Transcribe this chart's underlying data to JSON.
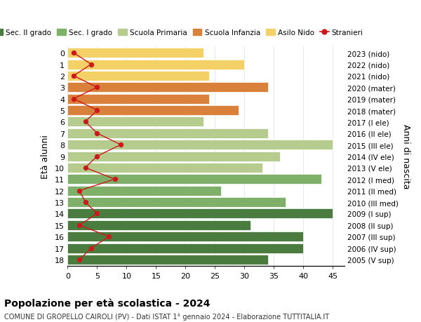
{
  "ages": [
    18,
    17,
    16,
    15,
    14,
    13,
    12,
    11,
    10,
    9,
    8,
    7,
    6,
    5,
    4,
    3,
    2,
    1,
    0
  ],
  "years": [
    "2005 (V sup)",
    "2006 (IV sup)",
    "2007 (III sup)",
    "2008 (II sup)",
    "2009 (I sup)",
    "2010 (III med)",
    "2011 (II med)",
    "2012 (I med)",
    "2013 (V ele)",
    "2014 (IV ele)",
    "2015 (III ele)",
    "2016 (II ele)",
    "2017 (I ele)",
    "2018 (mater)",
    "2019 (mater)",
    "2020 (mater)",
    "2021 (nido)",
    "2022 (nido)",
    "2023 (nido)"
  ],
  "bar_values": [
    34,
    40,
    40,
    31,
    45,
    37,
    26,
    43,
    33,
    36,
    45,
    34,
    23,
    29,
    24,
    34,
    24,
    30,
    23
  ],
  "bar_colors": [
    "#4a7c3f",
    "#4a7c3f",
    "#4a7c3f",
    "#4a7c3f",
    "#4a7c3f",
    "#7fb069",
    "#7fb069",
    "#7fb069",
    "#b5cc8e",
    "#b5cc8e",
    "#b5cc8e",
    "#b5cc8e",
    "#b5cc8e",
    "#d9813a",
    "#d9813a",
    "#d9813a",
    "#f4d166",
    "#f4d166",
    "#f4d166"
  ],
  "stranieri": [
    2,
    4,
    7,
    2,
    5,
    3,
    2,
    8,
    3,
    5,
    9,
    5,
    3,
    5,
    1,
    5,
    1,
    4,
    1
  ],
  "stranieri_color": "#cc1a1a",
  "legend_labels": [
    "Sec. II grado",
    "Sec. I grado",
    "Scuola Primaria",
    "Scuola Infanzia",
    "Asilo Nido",
    "Stranieri"
  ],
  "legend_colors": [
    "#4a7c3f",
    "#7fb069",
    "#b5cc8e",
    "#d9813a",
    "#f4d166",
    "#cc1a1a"
  ],
  "ylabel_left": "Età alunni",
  "ylabel_right": "Anni di nascita",
  "title": "Popolazione per età scolastica - 2024",
  "subtitle": "COMUNE DI GROPELLO CAIROLI (PV) - Dati ISTAT 1° gennaio 2024 - Elaborazione TUTTITALIA.IT",
  "xlim": [
    0,
    47
  ],
  "xticks": [
    0,
    5,
    10,
    15,
    20,
    25,
    30,
    35,
    40,
    45
  ],
  "bg_color": "#ffffff",
  "bar_edge_color": "#ffffff",
  "grid_color": "#dddddd"
}
